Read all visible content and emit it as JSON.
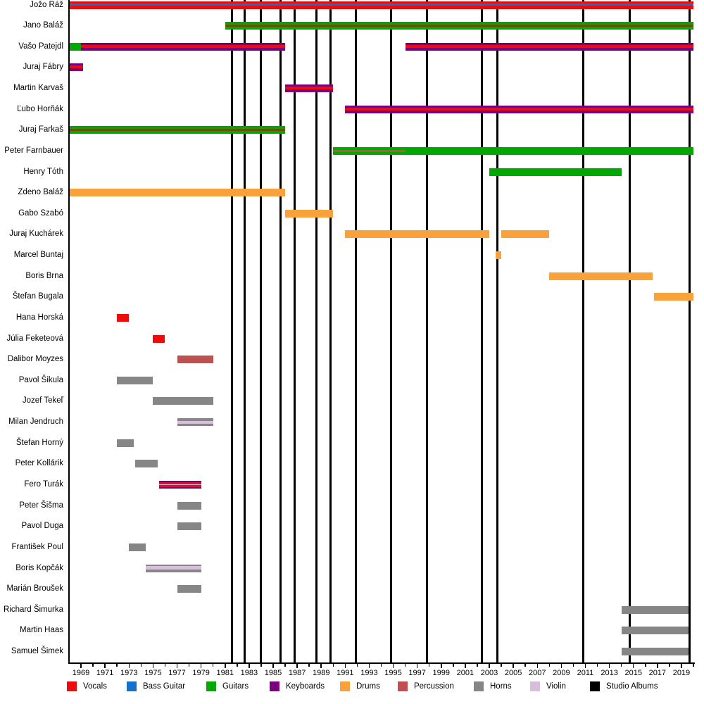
{
  "colors": {
    "vocals": "#ed0c0c",
    "bass": "#1570cd",
    "guitars": "#00a800",
    "keyboards": "#7a0080",
    "drums": "#f9a13b",
    "percussion": "#c04f4f",
    "horns": "#868686",
    "violin": "#d7bedb",
    "albums": "#000000"
  },
  "legend": {
    "items": [
      {
        "key": "vocals",
        "label": "Vocals"
      },
      {
        "key": "bass",
        "label": "Bass Guitar"
      },
      {
        "key": "guitars",
        "label": "Guitars"
      },
      {
        "key": "keyboards",
        "label": "Keyboards"
      },
      {
        "key": "drums",
        "label": "Drums"
      },
      {
        "key": "percussion",
        "label": "Percussion"
      },
      {
        "key": "horns",
        "label": "Horns"
      },
      {
        "key": "violin",
        "label": "Violin"
      },
      {
        "key": "albums",
        "label": "Studio Albums"
      }
    ]
  },
  "chart_data": {
    "type": "timeline",
    "subtype": "band-membership-gantt",
    "title": "",
    "xlabel": "",
    "ylabel": "",
    "grid": "vertical-event-lines",
    "legend_position": "bottom",
    "axis": {
      "year_start": 1968,
      "year_end": 2020,
      "tick_label_years": [
        1969,
        1971,
        1973,
        1975,
        1977,
        1979,
        1981,
        1983,
        1985,
        1987,
        1989,
        1991,
        1993,
        1995,
        1997,
        1999,
        2001,
        2003,
        2005,
        2007,
        2009,
        2011,
        2013,
        2015,
        2017,
        2019
      ]
    },
    "album_years": [
      1981.6,
      1982.6,
      1984.0,
      1985.6,
      1986.8,
      1988.6,
      1989.8,
      1991.9,
      1994.8,
      1997.8,
      2002.4,
      2003.7,
      2010.8,
      2014.7,
      2019.7
    ],
    "members": [
      {
        "name": "Jožo Ráž",
        "stints": [
          {
            "start": 1968,
            "end": 2020,
            "stripes": [
              [
                "vocals",
                3
              ],
              [
                "bass",
                3.5
              ],
              [
                "vocals",
                4.5
              ]
            ]
          }
        ]
      },
      {
        "name": "Jano Baláž",
        "stints": [
          {
            "start": 1981,
            "end": 2020,
            "stripes": [
              [
                "guitars",
                3.5
              ],
              [
                "vocals",
                3.5
              ],
              [
                "guitars",
                4
              ]
            ]
          }
        ]
      },
      {
        "name": "Vašo Patejdl",
        "stints": [
          {
            "start": 1968,
            "end": 1969,
            "stripes": [
              [
                "guitars",
                1
              ]
            ]
          },
          {
            "start": 1969,
            "end": 1986,
            "stripes": [
              [
                "keyboards",
                3
              ],
              [
                "vocals",
                4
              ],
              [
                "keyboards",
                4
              ]
            ]
          },
          {
            "start": 1996,
            "end": 2020,
            "stripes": [
              [
                "keyboards",
                3
              ],
              [
                "vocals",
                4
              ],
              [
                "keyboards",
                4
              ]
            ]
          }
        ]
      },
      {
        "name": "Juraj Fábry",
        "stints": [
          {
            "start": 1968,
            "end": 1969.2,
            "stripes": [
              [
                "keyboards",
                3
              ],
              [
                "vocals",
                4
              ],
              [
                "keyboards",
                4
              ]
            ]
          }
        ]
      },
      {
        "name": "Martin Karvaš",
        "stints": [
          {
            "start": 1986,
            "end": 1990,
            "stripes": [
              [
                "keyboards",
                3
              ],
              [
                "vocals",
                4
              ],
              [
                "keyboards",
                4
              ]
            ]
          }
        ]
      },
      {
        "name": "Ľubo Horňák",
        "stints": [
          {
            "start": 1991,
            "end": 2020,
            "stripes": [
              [
                "keyboards",
                3
              ],
              [
                "vocals",
                4
              ],
              [
                "keyboards",
                4
              ]
            ]
          }
        ]
      },
      {
        "name": "Juraj Farkaš",
        "stints": [
          {
            "start": 1968,
            "end": 1986,
            "stripes": [
              [
                "guitars",
                3.5
              ],
              [
                "vocals",
                3.5
              ],
              [
                "guitars",
                4
              ]
            ]
          }
        ]
      },
      {
        "name": "Peter Farnbauer",
        "stints": [
          {
            "start": 1990,
            "end": 1996,
            "stripes": [
              [
                "guitars",
                4
              ],
              [
                "percussion",
                3.5
              ],
              [
                "guitars",
                3.5
              ]
            ]
          },
          {
            "start": 1996,
            "end": 2020,
            "stripes": [
              [
                "guitars",
                1
              ]
            ]
          }
        ]
      },
      {
        "name": "Henry Tóth",
        "stints": [
          {
            "start": 2003,
            "end": 2014,
            "stripes": [
              [
                "guitars",
                1
              ]
            ]
          }
        ]
      },
      {
        "name": "Zdeno Baláž",
        "stints": [
          {
            "start": 1968,
            "end": 1986,
            "stripes": [
              [
                "drums",
                1
              ]
            ]
          }
        ]
      },
      {
        "name": "Gabo Szabó",
        "stints": [
          {
            "start": 1986,
            "end": 1990,
            "stripes": [
              [
                "drums",
                1
              ]
            ]
          }
        ]
      },
      {
        "name": "Juraj Kuchárek",
        "stints": [
          {
            "start": 1991,
            "end": 2003,
            "stripes": [
              [
                "drums",
                1
              ]
            ]
          },
          {
            "start": 2004,
            "end": 2008,
            "stripes": [
              [
                "drums",
                1
              ]
            ]
          }
        ]
      },
      {
        "name": "Marcel Buntaj",
        "stints": [
          {
            "start": 2003.5,
            "end": 2004,
            "stripes": [
              [
                "drums",
                1
              ]
            ]
          }
        ]
      },
      {
        "name": "Boris Brna",
        "stints": [
          {
            "start": 2008,
            "end": 2016.6,
            "stripes": [
              [
                "drums",
                1
              ]
            ]
          }
        ]
      },
      {
        "name": "Štefan Bugala",
        "stints": [
          {
            "start": 2016.7,
            "end": 2020,
            "stripes": [
              [
                "drums",
                1
              ]
            ]
          }
        ]
      },
      {
        "name": "Hana Horská",
        "stints": [
          {
            "start": 1972,
            "end": 1973,
            "stripes": [
              [
                "vocals",
                1
              ]
            ]
          }
        ]
      },
      {
        "name": "Júlia Feketeová",
        "stints": [
          {
            "start": 1975,
            "end": 1976,
            "stripes": [
              [
                "vocals",
                1
              ]
            ]
          }
        ]
      },
      {
        "name": "Dalibor Moyzes",
        "stints": [
          {
            "start": 1977,
            "end": 1980,
            "stripes": [
              [
                "percussion",
                1
              ]
            ]
          }
        ]
      },
      {
        "name": "Pavol Šikula",
        "stints": [
          {
            "start": 1972,
            "end": 1975,
            "stripes": [
              [
                "horns",
                1
              ]
            ]
          }
        ]
      },
      {
        "name": "Jozef Tekeľ",
        "stints": [
          {
            "start": 1975,
            "end": 1980,
            "stripes": [
              [
                "horns",
                1
              ]
            ]
          }
        ]
      },
      {
        "name": "Milan Jendruch",
        "stints": [
          {
            "start": 1977,
            "end": 1980,
            "stripes": [
              [
                "horns",
                4
              ],
              [
                "violin",
                3.5
              ],
              [
                "horns",
                3.5
              ]
            ]
          }
        ]
      },
      {
        "name": "Štefan Horný",
        "stints": [
          {
            "start": 1972,
            "end": 1973.4,
            "stripes": [
              [
                "horns",
                1
              ]
            ]
          }
        ]
      },
      {
        "name": "Peter Kollárik",
        "stints": [
          {
            "start": 1973.5,
            "end": 1975.4,
            "stripes": [
              [
                "horns",
                1
              ]
            ]
          }
        ]
      },
      {
        "name": "Fero Turák",
        "stints": [
          {
            "start": 1975.5,
            "end": 1979,
            "stripes": [
              [
                "keyboards",
                2.3
              ],
              [
                "vocals",
                2.6
              ],
              [
                "violin",
                1.6
              ],
              [
                "vocals",
                2.6
              ],
              [
                "keyboards",
                2.3
              ]
            ]
          }
        ]
      },
      {
        "name": "Peter Šišma",
        "stints": [
          {
            "start": 1977,
            "end": 1979,
            "stripes": [
              [
                "horns",
                1
              ]
            ]
          }
        ]
      },
      {
        "name": "Pavol Duga",
        "stints": [
          {
            "start": 1977,
            "end": 1979,
            "stripes": [
              [
                "horns",
                1
              ]
            ]
          }
        ]
      },
      {
        "name": "František Poul",
        "stints": [
          {
            "start": 1973,
            "end": 1974.4,
            "stripes": [
              [
                "horns",
                1
              ]
            ]
          }
        ]
      },
      {
        "name": "Boris Kopčák",
        "stints": [
          {
            "start": 1974.4,
            "end": 1979,
            "stripes": [
              [
                "horns",
                2.5
              ],
              [
                "violin",
                4.5
              ],
              [
                "horns",
                4
              ]
            ]
          }
        ]
      },
      {
        "name": "Marián Broušek",
        "stints": [
          {
            "start": 1977,
            "end": 1979,
            "stripes": [
              [
                "horns",
                1
              ]
            ]
          }
        ]
      },
      {
        "name": "Richard Šimurka",
        "stints": [
          {
            "start": 2014,
            "end": 2019.6,
            "stripes": [
              [
                "horns",
                1
              ]
            ]
          }
        ]
      },
      {
        "name": "Martin Haas",
        "stints": [
          {
            "start": 2014,
            "end": 2019.6,
            "stripes": [
              [
                "horns",
                1
              ]
            ]
          }
        ]
      },
      {
        "name": "Samuel Šimek",
        "stints": [
          {
            "start": 2014,
            "end": 2019.6,
            "stripes": [
              [
                "horns",
                1
              ]
            ]
          }
        ]
      }
    ]
  }
}
